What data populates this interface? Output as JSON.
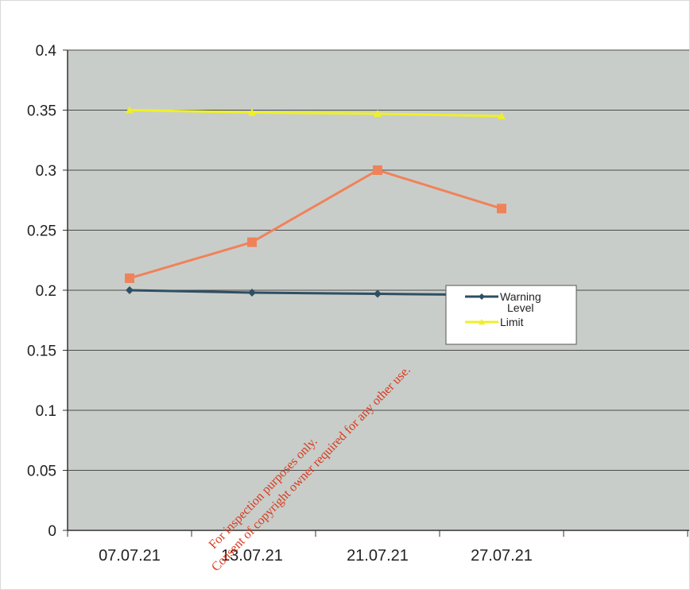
{
  "chart_data": {
    "type": "line",
    "title": "",
    "xlabel": "",
    "ylabel": "",
    "categories": [
      "07.07.21",
      "13.07.21",
      "21.07.21",
      "27.07.21"
    ],
    "ylim": [
      0,
      0.4
    ],
    "yticks": [
      "0",
      "0.05",
      "0.1",
      "0.15",
      "0.2",
      "0.25",
      "0.3",
      "0.35",
      "0.4"
    ],
    "grid": true,
    "legend_position": "right",
    "series": [
      {
        "name": "Warning Level",
        "values": [
          0.2,
          0.198,
          0.197,
          0.196
        ],
        "color": "#2e4f63",
        "marker": "diamond"
      },
      {
        "name": "",
        "values": [
          0.21,
          0.24,
          0.3,
          0.268
        ],
        "color": "#f0825a",
        "marker": "square"
      },
      {
        "name": "Limit",
        "values": [
          0.35,
          0.348,
          0.347,
          0.345
        ],
        "color": "#eef02a",
        "marker": "triangle"
      }
    ],
    "legend": [
      {
        "label_line1": "Warning",
        "label_line2": "Level",
        "series": 0
      },
      {
        "label_line1": "Limit",
        "label_line2": "",
        "series": 2
      }
    ],
    "plot_background": "#c9cdc9",
    "gridline_color": "#4a4a4a"
  },
  "watermark": {
    "line1": "For inspection purposes only.",
    "line2": "Consent of copyright owner required for any other use."
  }
}
